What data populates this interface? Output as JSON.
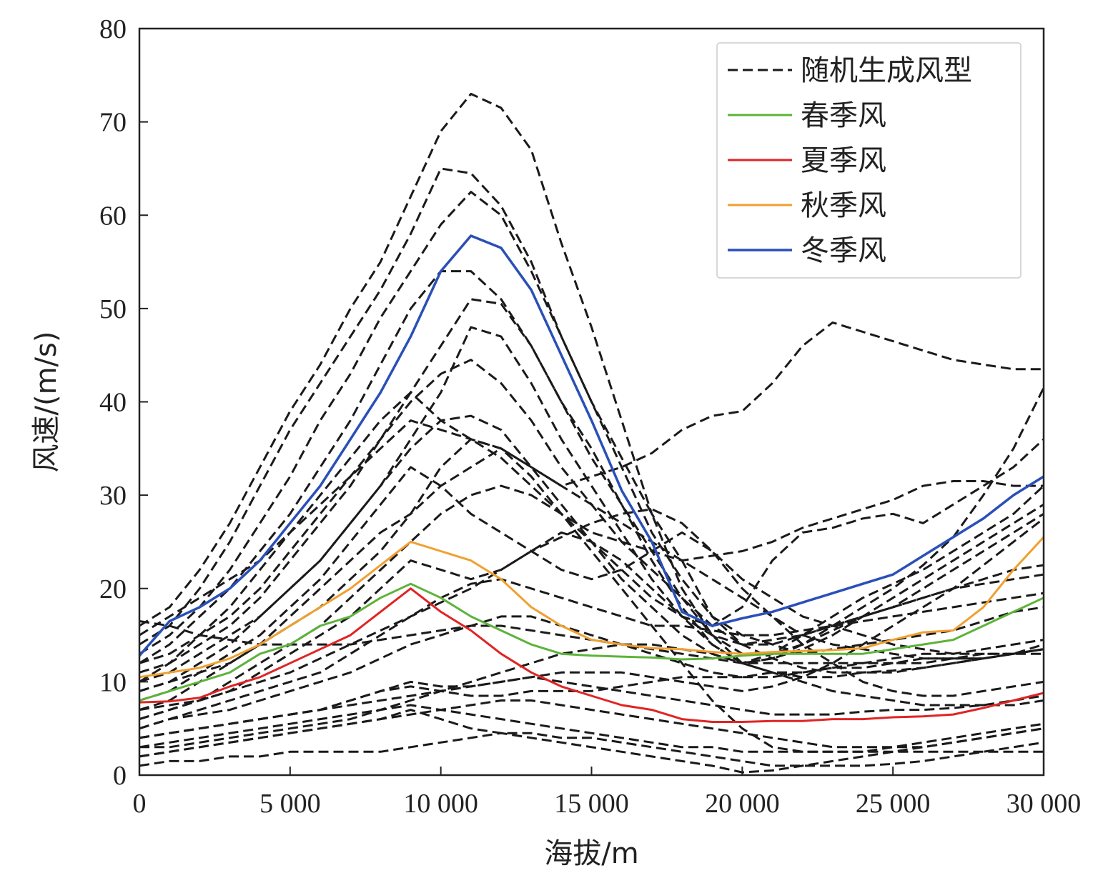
{
  "chart_data": {
    "type": "line",
    "title": "",
    "xlabel": "海拔/m",
    "ylabel": "风速/(m/s)",
    "xlim": [
      0,
      30000
    ],
    "ylim": [
      0,
      80
    ],
    "xticks": [
      0,
      5000,
      10000,
      15000,
      20000,
      25000,
      30000
    ],
    "xtick_labels": [
      "0",
      "5 000",
      "10 000",
      "15 000",
      "20 000",
      "25 000",
      "30 000"
    ],
    "yticks": [
      0,
      10,
      20,
      30,
      40,
      50,
      60,
      70,
      80
    ],
    "ytick_labels": [
      "0",
      "10",
      "20",
      "30",
      "40",
      "50",
      "60",
      "70",
      "80"
    ],
    "grid": false,
    "legend_position": "top-right",
    "x": [
      0,
      1000,
      2000,
      3000,
      4000,
      5000,
      6000,
      7000,
      8000,
      9000,
      10000,
      11000,
      12000,
      13000,
      14000,
      15000,
      16000,
      17000,
      18000,
      19000,
      20000,
      21000,
      22000,
      23000,
      24000,
      25000,
      26000,
      27000,
      28000,
      29000,
      30000
    ],
    "series": [
      {
        "name": "春季风",
        "color": "#5db33a",
        "style": "solid",
        "width": 3,
        "values": [
          8,
          9,
          10,
          11,
          13,
          14,
          16,
          17,
          19,
          20.5,
          19,
          17,
          15.5,
          14,
          13,
          12.8,
          12.7,
          12.6,
          12.4,
          12.5,
          12.8,
          13,
          13,
          13,
          13,
          13.5,
          14,
          14.5,
          16,
          17.5,
          19
        ]
      },
      {
        "name": "夏季风",
        "color": "#e02424",
        "style": "solid",
        "width": 3,
        "values": [
          7.8,
          7.9,
          8.3,
          9.5,
          10.5,
          12,
          13.5,
          15,
          17.5,
          20,
          17.5,
          15.5,
          13,
          11,
          9.5,
          8.5,
          7.5,
          7,
          6,
          5.7,
          5.7,
          5.8,
          5.8,
          6,
          6,
          6.2,
          6.3,
          6.5,
          7.2,
          8,
          8.8
        ]
      },
      {
        "name": "秋季风",
        "color": "#f0a030",
        "style": "solid",
        "width": 3,
        "values": [
          10.5,
          11,
          11.5,
          12.5,
          14,
          16,
          18,
          20,
          22.5,
          25,
          24,
          23,
          21,
          18,
          16,
          14.5,
          14,
          13.6,
          13.5,
          13.2,
          13,
          13.2,
          13.3,
          13.4,
          13.6,
          14.5,
          15.3,
          15.5,
          18,
          22,
          25.5
        ]
      },
      {
        "name": "冬季风",
        "color": "#2a4fb8",
        "style": "solid",
        "width": 3.5,
        "values": [
          12.8,
          16.5,
          18,
          20,
          23,
          27,
          31,
          36,
          41,
          47,
          54,
          57.8,
          56.5,
          52,
          45,
          38,
          30.5,
          25,
          17.5,
          16,
          16.8,
          17.5,
          18.5,
          19.5,
          20.5,
          21.5,
          23.5,
          25.5,
          27.5,
          30,
          32
        ]
      },
      {
        "name": "随机生成风型",
        "color": "#1a1a1a",
        "style": "dashed",
        "width": 3,
        "values": [
          16,
          18,
          22,
          27,
          33,
          39,
          44,
          50,
          55,
          62,
          69,
          73,
          71.5,
          67,
          57,
          48,
          38,
          28,
          23,
          17,
          14,
          12.5,
          11.5,
          11,
          11,
          11.2,
          11.5,
          12,
          12.5,
          13,
          13.5
        ]
      },
      {
        "color": "#1a1a1a",
        "style": "dashed",
        "width": 3,
        "values": [
          14,
          16,
          20,
          25,
          31,
          37,
          42,
          47,
          52,
          58,
          65,
          64.5,
          61,
          55,
          47,
          40,
          34,
          28,
          20,
          15,
          12,
          11,
          10.5,
          10.5,
          11,
          11,
          11.5,
          12,
          12.5,
          13,
          14
        ]
      },
      {
        "color": "#1a1a1a",
        "style": "dashed",
        "width": 3,
        "values": [
          13,
          15,
          18,
          22,
          27,
          32,
          38,
          43,
          49,
          54,
          59,
          62.5,
          60,
          54,
          47,
          40,
          33,
          26,
          21,
          17,
          15,
          14,
          13,
          13.5,
          14,
          14.5,
          15,
          15.5,
          16.5,
          17.5,
          18
        ]
      },
      {
        "color": "#1a1a1a",
        "style": "dashed",
        "width": 3,
        "values": [
          12,
          14,
          17,
          20,
          24,
          28,
          33,
          38,
          44,
          50,
          54,
          54,
          51,
          46,
          40,
          35,
          29,
          23,
          18,
          14,
          12,
          12.5,
          14,
          16,
          18,
          20,
          22.5,
          25.5,
          30,
          35,
          41.5
        ]
      },
      {
        "color": "#1a1a1a",
        "style": "dashed",
        "width": 3,
        "values": [
          11,
          12,
          14,
          16,
          19,
          23,
          27,
          31,
          36,
          41,
          46,
          51,
          50.5,
          46,
          40,
          34,
          29,
          24,
          19,
          15,
          13,
          13,
          14,
          15.5,
          17,
          19,
          21,
          23,
          25,
          27,
          29
        ]
      },
      {
        "color": "#1a1a1a",
        "style": "dashed",
        "width": 3,
        "values": [
          10,
          11,
          13,
          15,
          17,
          20,
          23,
          27,
          31,
          36,
          41,
          48,
          47,
          42,
          36,
          31,
          26,
          21,
          17,
          14,
          12,
          12.5,
          13.5,
          15,
          17,
          18,
          20,
          22,
          24,
          26,
          28
        ]
      },
      {
        "color": "#1a1a1a",
        "style": "dashed",
        "width": 3,
        "values": [
          12,
          13,
          15,
          17,
          20,
          24,
          28,
          32,
          36,
          40,
          43,
          44.5,
          42,
          38,
          33,
          29,
          25,
          22,
          19,
          16,
          14,
          14,
          15,
          16,
          17,
          18,
          19,
          20,
          20.5,
          21,
          21.5
        ]
      },
      {
        "color": "#1a1a1a",
        "style": "dashed",
        "width": 3,
        "values": [
          10,
          12,
          15,
          18,
          22,
          26,
          30,
          34,
          38,
          41,
          38,
          36,
          34,
          31,
          28,
          25,
          22,
          19,
          17,
          16,
          18,
          23,
          26,
          26.5,
          27.5,
          28,
          27,
          29,
          31,
          33,
          36
        ]
      },
      {
        "color": "#1a1a1a",
        "style": "dashed",
        "width": 3,
        "values": [
          9,
          10,
          12,
          14,
          17,
          20,
          23,
          27,
          31,
          35,
          38,
          38.5,
          37,
          33,
          29,
          25,
          21,
          18,
          15,
          13,
          12,
          13,
          15,
          17,
          19,
          20.5,
          22,
          24,
          26,
          28,
          31
        ]
      },
      {
        "color": "#1a1a1a",
        "style": "dashed",
        "width": 3,
        "values": [
          8,
          9,
          11,
          13,
          15,
          18,
          21,
          25,
          29,
          33,
          31,
          28,
          26,
          24,
          22,
          21,
          22,
          24,
          26,
          24,
          21,
          19,
          17,
          16,
          15,
          14,
          13.5,
          13,
          13,
          13,
          13.5
        ]
      },
      {
        "color": "#1a1a1a",
        "style": "dashed",
        "width": 3,
        "values": [
          7,
          8,
          10,
          12,
          14,
          17,
          20,
          23,
          26,
          28,
          31,
          33,
          35,
          33,
          31,
          32,
          33,
          34.5,
          37,
          38.5,
          39,
          42,
          46,
          48.5,
          47.5,
          46.5,
          45.5,
          44.5,
          44,
          43.5,
          43.5
        ]
      },
      {
        "color": "#1a1a1a",
        "style": "dashed",
        "width": 3,
        "values": [
          6,
          7,
          8,
          10,
          12,
          14,
          16,
          19,
          22,
          25,
          28,
          30,
          31,
          30,
          28,
          26,
          25,
          24,
          23,
          23.5,
          24,
          25,
          26.5,
          27.5,
          28.5,
          29.5,
          31,
          31.5,
          31.5,
          31,
          31
        ]
      },
      {
        "color": "#1a1a1a",
        "style": "dashed",
        "width": 3,
        "values": [
          6,
          7,
          8,
          9,
          11,
          13,
          15,
          17,
          20,
          23,
          22,
          21,
          22,
          24,
          26,
          25,
          23,
          20,
          17,
          15,
          14,
          14.5,
          15,
          16,
          17,
          18,
          19,
          20,
          21,
          22,
          22.5
        ]
      },
      {
        "color": "#1a1a1a",
        "style": "dashed",
        "width": 3,
        "values": [
          5,
          6,
          7,
          8,
          9,
          10,
          11,
          13,
          15,
          17,
          19,
          20.5,
          21,
          20,
          19,
          18,
          17,
          16,
          16,
          15.5,
          15,
          15,
          15.5,
          16,
          16.5,
          17,
          17.5,
          18,
          18.5,
          19,
          19.5
        ]
      },
      {
        "color": "#1a1a1a",
        "style": "dashed",
        "width": 3,
        "values": [
          5,
          6,
          6.5,
          7,
          8,
          9,
          10,
          11,
          12.5,
          14,
          15,
          16,
          17,
          17,
          16,
          15,
          14,
          13,
          12,
          11,
          10.5,
          10.5,
          11,
          11.5,
          12,
          12.5,
          13,
          13,
          13.5,
          14,
          14.5
        ]
      },
      {
        "color": "#1a1a1a",
        "style": "dashed",
        "width": 3,
        "values": [
          4,
          4.5,
          5,
          5.5,
          6,
          6.5,
          7,
          8,
          9,
          9.5,
          9,
          8.5,
          8.5,
          9,
          9,
          9,
          9.5,
          10,
          10.5,
          10.5,
          10.5,
          11,
          11,
          11.5,
          11.5,
          12,
          12,
          12.5,
          12.5,
          13,
          13
        ]
      },
      {
        "color": "#1a1a1a",
        "style": "dashed",
        "width": 3,
        "values": [
          4,
          4.5,
          5,
          5.5,
          6,
          6.5,
          7,
          8,
          9,
          10,
          9.5,
          9.5,
          10,
          10.5,
          10,
          9.5,
          9,
          8.5,
          8,
          7.5,
          7,
          6.5,
          6.5,
          6.5,
          6.8,
          7,
          7,
          7.2,
          7.5,
          8,
          8.5
        ]
      },
      {
        "color": "#1a1a1a",
        "style": "dashed",
        "width": 3,
        "values": [
          3,
          3.5,
          4,
          4.5,
          5,
          5.5,
          6,
          6.5,
          7,
          7.5,
          7,
          6.5,
          6,
          5.5,
          5,
          4.5,
          4,
          3.5,
          3,
          3,
          2.5,
          2.5,
          2.5,
          2.5,
          2.5,
          2.5,
          2.5,
          2.5,
          2.5,
          2.5,
          2.5
        ]
      },
      {
        "color": "#1a1a1a",
        "style": "dashed",
        "width": 3,
        "values": [
          2,
          2.5,
          3,
          3.5,
          4,
          4.5,
          5,
          5.5,
          6,
          7,
          6,
          5,
          4.5,
          4.5,
          4,
          4,
          3.5,
          3,
          2.5,
          2,
          1.5,
          1,
          1,
          1,
          1,
          1.2,
          1.5,
          2,
          2.5,
          3,
          3.5
        ]
      },
      {
        "color": "#1a1a1a",
        "style": "dashed",
        "width": 3,
        "values": [
          1,
          1.5,
          1.5,
          2,
          2,
          2.5,
          2.5,
          2.5,
          2.5,
          3,
          3.5,
          4,
          4.5,
          4,
          3.5,
          3,
          2.5,
          2,
          1.5,
          1,
          0.3,
          0.5,
          1,
          1.5,
          2,
          2.5,
          3,
          3.5,
          4,
          4.5,
          5
        ]
      },
      {
        "color": "#1a1a1a",
        "style": "dashed",
        "width": 3,
        "values": [
          2,
          2.5,
          3,
          3.5,
          4,
          4.5,
          5,
          5.5,
          6,
          6.5,
          7,
          7.5,
          8,
          8,
          7.5,
          7,
          6.5,
          6,
          5.5,
          5,
          4.5,
          4,
          3.5,
          3,
          3,
          3,
          3,
          3.5,
          4,
          4.5,
          5
        ]
      },
      {
        "color": "#1a1a1a",
        "style": "dashed",
        "width": 3,
        "values": [
          15,
          17,
          19,
          21,
          23,
          26,
          29,
          32,
          35,
          38,
          37,
          36,
          35,
          33,
          31,
          29,
          27,
          25,
          23,
          21,
          19,
          17,
          15,
          14,
          13.5,
          13,
          12.5,
          12.5,
          12.5,
          13,
          13.5
        ]
      },
      {
        "color": "#1a1a1a",
        "style": "dashed",
        "width": 3,
        "values": [
          9,
          10,
          11,
          12,
          14,
          16,
          18,
          21,
          24,
          28,
          33,
          36,
          35,
          32,
          28,
          24,
          20,
          16,
          12,
          8,
          5,
          3,
          2.5,
          2.5,
          2.5,
          3,
          3.5,
          4,
          4.5,
          5,
          5.5
        ]
      },
      {
        "color": "#1a1a1a",
        "style": "dashed",
        "width": 3,
        "values": [
          3,
          3,
          3.5,
          4,
          4.5,
          5,
          5.5,
          6,
          7,
          8,
          9,
          10,
          11,
          12,
          13,
          13.5,
          14,
          14,
          13.5,
          13,
          12,
          11,
          10,
          9,
          8.5,
          8,
          7.5,
          7.5,
          7.5,
          7.5,
          8
        ]
      },
      {
        "color": "#1a1a1a",
        "style": "dashed",
        "width": 3,
        "values": [
          16.5,
          16,
          15,
          14.5,
          14,
          14,
          14,
          14,
          14.5,
          15,
          15.5,
          16,
          16,
          15.5,
          15,
          14.5,
          14,
          13.5,
          13,
          12.5,
          12,
          12,
          12,
          12,
          12,
          12,
          12.5,
          12.5,
          13,
          13,
          13.5
        ]
      },
      {
        "color": "#1a1a1a",
        "style": "dashed",
        "width": 3,
        "values": [
          7,
          7.5,
          8,
          9,
          10,
          11,
          12.5,
          14,
          15.5,
          17,
          18.5,
          20,
          22,
          24,
          25.5,
          27,
          28,
          28.5,
          27,
          24,
          20,
          17,
          14,
          12,
          10,
          9,
          8.5,
          8.5,
          9,
          9.5,
          10
        ]
      },
      {
        "color": "#1a1a1a",
        "style": "dashed",
        "width": 3,
        "values": [
          4,
          4.5,
          5,
          5.5,
          6,
          6.5,
          7,
          7.5,
          8,
          8.5,
          9,
          9.5,
          10,
          10.5,
          11,
          11,
          11,
          10.5,
          10,
          9.5,
          9,
          9.5,
          10.5,
          12,
          14,
          16,
          18,
          20,
          22.5,
          25,
          27.5
        ]
      }
    ]
  }
}
